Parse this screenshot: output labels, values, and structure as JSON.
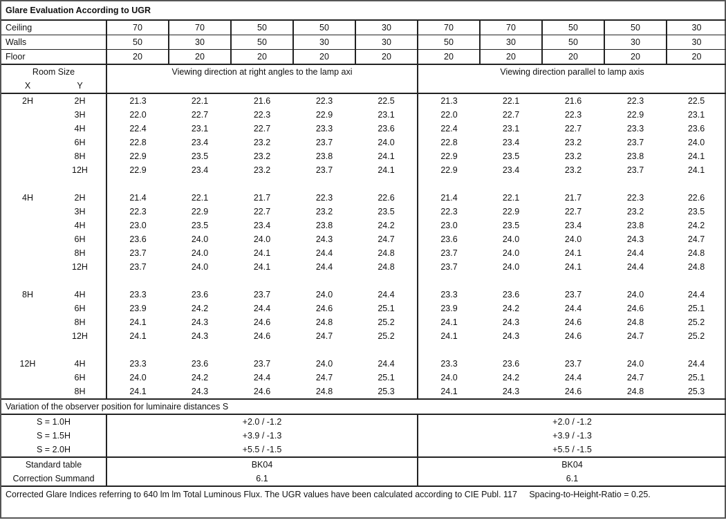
{
  "title": "Glare Evaluation According to UGR",
  "reflectances": [
    {
      "label": "Ceiling",
      "values": [
        "70",
        "70",
        "50",
        "50",
        "30",
        "70",
        "70",
        "50",
        "50",
        "30"
      ]
    },
    {
      "label": "Walls",
      "values": [
        "50",
        "30",
        "50",
        "30",
        "30",
        "50",
        "30",
        "50",
        "30",
        "30"
      ]
    },
    {
      "label": "Floor",
      "values": [
        "20",
        "20",
        "20",
        "20",
        "20",
        "20",
        "20",
        "20",
        "20",
        "20"
      ]
    }
  ],
  "header": {
    "room_size": "Room Size",
    "x": "X",
    "y": "Y",
    "dir_right": "Viewing direction at right angles to the lamp axi",
    "dir_parallel": "Viewing direction parallel to lamp axis"
  },
  "groups": [
    {
      "x": "2H",
      "rows": [
        {
          "y": "2H",
          "v": [
            "21.3",
            "22.1",
            "21.6",
            "22.3",
            "22.5",
            "21.3",
            "22.1",
            "21.6",
            "22.3",
            "22.5"
          ]
        },
        {
          "y": "3H",
          "v": [
            "22.0",
            "22.7",
            "22.3",
            "22.9",
            "23.1",
            "22.0",
            "22.7",
            "22.3",
            "22.9",
            "23.1"
          ]
        },
        {
          "y": "4H",
          "v": [
            "22.4",
            "23.1",
            "22.7",
            "23.3",
            "23.6",
            "22.4",
            "23.1",
            "22.7",
            "23.3",
            "23.6"
          ]
        },
        {
          "y": "6H",
          "v": [
            "22.8",
            "23.4",
            "23.2",
            "23.7",
            "24.0",
            "22.8",
            "23.4",
            "23.2",
            "23.7",
            "24.0"
          ]
        },
        {
          "y": "8H",
          "v": [
            "22.9",
            "23.5",
            "23.2",
            "23.8",
            "24.1",
            "22.9",
            "23.5",
            "23.2",
            "23.8",
            "24.1"
          ]
        },
        {
          "y": "12H",
          "v": [
            "22.9",
            "23.4",
            "23.2",
            "23.7",
            "24.1",
            "22.9",
            "23.4",
            "23.2",
            "23.7",
            "24.1"
          ]
        }
      ]
    },
    {
      "x": "4H",
      "rows": [
        {
          "y": "2H",
          "v": [
            "21.4",
            "22.1",
            "21.7",
            "22.3",
            "22.6",
            "21.4",
            "22.1",
            "21.7",
            "22.3",
            "22.6"
          ]
        },
        {
          "y": "3H",
          "v": [
            "22.3",
            "22.9",
            "22.7",
            "23.2",
            "23.5",
            "22.3",
            "22.9",
            "22.7",
            "23.2",
            "23.5"
          ]
        },
        {
          "y": "4H",
          "v": [
            "23.0",
            "23.5",
            "23.4",
            "23.8",
            "24.2",
            "23.0",
            "23.5",
            "23.4",
            "23.8",
            "24.2"
          ]
        },
        {
          "y": "6H",
          "v": [
            "23.6",
            "24.0",
            "24.0",
            "24.3",
            "24.7",
            "23.6",
            "24.0",
            "24.0",
            "24.3",
            "24.7"
          ]
        },
        {
          "y": "8H",
          "v": [
            "23.7",
            "24.0",
            "24.1",
            "24.4",
            "24.8",
            "23.7",
            "24.0",
            "24.1",
            "24.4",
            "24.8"
          ]
        },
        {
          "y": "12H",
          "v": [
            "23.7",
            "24.0",
            "24.1",
            "24.4",
            "24.8",
            "23.7",
            "24.0",
            "24.1",
            "24.4",
            "24.8"
          ]
        }
      ]
    },
    {
      "x": "8H",
      "rows": [
        {
          "y": "4H",
          "v": [
            "23.3",
            "23.6",
            "23.7",
            "24.0",
            "24.4",
            "23.3",
            "23.6",
            "23.7",
            "24.0",
            "24.4"
          ]
        },
        {
          "y": "6H",
          "v": [
            "23.9",
            "24.2",
            "24.4",
            "24.6",
            "25.1",
            "23.9",
            "24.2",
            "24.4",
            "24.6",
            "25.1"
          ]
        },
        {
          "y": "8H",
          "v": [
            "24.1",
            "24.3",
            "24.6",
            "24.8",
            "25.2",
            "24.1",
            "24.3",
            "24.6",
            "24.8",
            "25.2"
          ]
        },
        {
          "y": "12H",
          "v": [
            "24.1",
            "24.3",
            "24.6",
            "24.7",
            "25.2",
            "24.1",
            "24.3",
            "24.6",
            "24.7",
            "25.2"
          ]
        }
      ]
    },
    {
      "x": "12H",
      "rows": [
        {
          "y": "4H",
          "v": [
            "23.3",
            "23.6",
            "23.7",
            "24.0",
            "24.4",
            "23.3",
            "23.6",
            "23.7",
            "24.0",
            "24.4"
          ]
        },
        {
          "y": "6H",
          "v": [
            "24.0",
            "24.2",
            "24.4",
            "24.7",
            "25.1",
            "24.0",
            "24.2",
            "24.4",
            "24.7",
            "25.1"
          ]
        },
        {
          "y": "8H",
          "v": [
            "24.1",
            "24.3",
            "24.6",
            "24.8",
            "25.3",
            "24.1",
            "24.3",
            "24.6",
            "24.8",
            "25.3"
          ]
        }
      ]
    }
  ],
  "variation": {
    "title": "Variation of the observer position for luminaire distances S",
    "rows": [
      {
        "label": "S = 1.0H",
        "right": "+2.0 / -1.2",
        "parallel": "+2.0 / -1.2"
      },
      {
        "label": "S = 1.5H",
        "right": "+3.9 / -1.3",
        "parallel": "+3.9 / -1.3"
      },
      {
        "label": "S = 2.0H",
        "right": "+5.5 / -1.5",
        "parallel": "+5.5 / -1.5"
      }
    ]
  },
  "standard": [
    {
      "label": "Standard table",
      "right": "BK04",
      "parallel": "BK04"
    },
    {
      "label": "Correction Summand",
      "right": "6.1",
      "parallel": "6.1"
    }
  ],
  "footer": "Corrected Glare Indices referring to 640 lm lm Total Luminous Flux. The UGR values have been calculated according to CIE Publ. 117     Spacing-to-Height-Ratio = 0.25."
}
